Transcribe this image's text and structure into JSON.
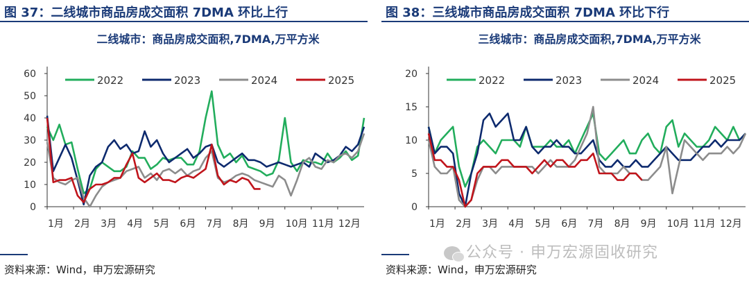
{
  "figures": [
    {
      "fig_title": "图 37：二线城市商品房成交面积 7DMA 环比上行",
      "source": "资料来源：Wind，申万宏源研究"
    },
    {
      "fig_title": "图 38：三线城市商品房成交面积 7DMA 环比下行",
      "source": "资料来源：Wind，申万宏源研究"
    }
  ],
  "watermark": "公众号 · 申万宏源固收研究",
  "chart_data": [
    {
      "type": "line",
      "title": "二线城市：商品房成交面积,7DMA,万平方米",
      "x_unit": "week",
      "x_range": [
        0,
        52
      ],
      "xticks": [
        "1月",
        "2月",
        "3月",
        "4月",
        "5月",
        "6月",
        "7月",
        "8月",
        "9月",
        "10月",
        "11月",
        "12月"
      ],
      "ylim": [
        0,
        60
      ],
      "yticks": [
        0,
        10,
        20,
        30,
        40,
        50,
        60
      ],
      "legend_position": "top",
      "grid": false,
      "series": [
        {
          "name": "2022",
          "color": "#22ad5c",
          "x": [
            0,
            1,
            2,
            3,
            4,
            5,
            6,
            7,
            8,
            9,
            10,
            11,
            12,
            13,
            14,
            15,
            16,
            17,
            18,
            19,
            20,
            21,
            22,
            23,
            24,
            25,
            26,
            27,
            28,
            29,
            30,
            31,
            32,
            33,
            34,
            35,
            36,
            37,
            38,
            39,
            40,
            41,
            42,
            43,
            44,
            45,
            46,
            47,
            48,
            49,
            50,
            51,
            52
          ],
          "values": [
            36,
            30,
            37,
            28,
            29,
            17,
            6,
            8,
            17,
            20,
            18,
            16,
            16,
            18,
            25,
            22,
            22,
            17,
            19,
            22,
            21,
            22,
            22,
            19,
            19,
            25,
            40,
            52,
            28,
            22,
            24,
            20,
            23,
            18,
            17,
            16,
            14,
            15,
            21,
            40,
            20,
            16,
            21,
            20,
            20,
            19,
            24,
            20,
            22,
            25,
            21,
            23,
            40
          ]
        },
        {
          "name": "2023",
          "color": "#0d2a6e",
          "x": [
            0,
            1,
            2,
            3,
            4,
            5,
            6,
            7,
            8,
            9,
            10,
            11,
            12,
            13,
            14,
            15,
            16,
            17,
            18,
            19,
            20,
            21,
            22,
            23,
            24,
            25,
            26,
            27,
            28,
            29,
            30,
            31,
            32,
            33,
            34,
            35,
            36,
            37,
            38,
            39,
            40,
            41,
            42,
            43,
            44,
            45,
            46,
            47,
            48,
            49,
            50,
            51,
            52
          ],
          "values": [
            41,
            16,
            22,
            28,
            22,
            12,
            1,
            14,
            18,
            20,
            27,
            30,
            26,
            28,
            24,
            25,
            34,
            27,
            30,
            24,
            20,
            22,
            24,
            26,
            22,
            24,
            27,
            28,
            20,
            18,
            20,
            22,
            24,
            21,
            21,
            20,
            18,
            19,
            20,
            19,
            18,
            19,
            20,
            18,
            24,
            22,
            20,
            21,
            23,
            27,
            25,
            28,
            36
          ]
        },
        {
          "name": "2024",
          "color": "#8c8c8c",
          "x": [
            0,
            1,
            2,
            3,
            4,
            5,
            6,
            7,
            8,
            9,
            10,
            11,
            12,
            13,
            14,
            15,
            16,
            17,
            18,
            19,
            20,
            21,
            22,
            23,
            24,
            25,
            26,
            27,
            28,
            29,
            30,
            31,
            32,
            33,
            34,
            35,
            36,
            37,
            38,
            39,
            40,
            41,
            42,
            43,
            44,
            45,
            46,
            47,
            48,
            49,
            50,
            51,
            52
          ],
          "values": [
            29,
            13,
            11,
            10,
            12,
            13,
            4,
            0,
            5,
            9,
            11,
            12,
            13,
            16,
            17,
            18,
            13,
            15,
            12,
            16,
            17,
            15,
            17,
            14,
            16,
            17,
            22,
            25,
            13,
            11,
            12,
            14,
            15,
            14,
            12,
            11,
            10,
            9,
            14,
            12,
            5,
            12,
            20,
            22,
            18,
            17,
            21,
            20,
            23,
            24,
            22,
            25,
            33
          ]
        },
        {
          "name": "2025",
          "color": "#c0141b",
          "x": [
            0,
            1,
            2,
            3,
            4,
            5,
            6,
            7,
            8,
            9,
            10,
            11,
            12,
            13,
            14,
            15,
            16,
            17,
            18,
            19,
            20,
            21,
            22,
            23,
            24,
            25,
            26,
            27,
            28,
            29,
            30,
            31,
            32,
            33,
            34,
            35
          ],
          "values": [
            40,
            11,
            12,
            12,
            13,
            5,
            2,
            8,
            10,
            10,
            11,
            13,
            13,
            19,
            24,
            13,
            11,
            13,
            15,
            12,
            12,
            11,
            13,
            14,
            13,
            15,
            17,
            28,
            14,
            10,
            12,
            11,
            13,
            12,
            8,
            8
          ]
        }
      ]
    },
    {
      "type": "line",
      "title": "三线城市：商品房成交面积,7DMA,万平方米",
      "x_unit": "week",
      "x_range": [
        0,
        52
      ],
      "xticks": [
        "1月",
        "2月",
        "3月",
        "4月",
        "5月",
        "6月",
        "7月",
        "8月",
        "9月",
        "10月",
        "11月",
        "12月"
      ],
      "ylim": [
        0,
        20
      ],
      "yticks": [
        0,
        5,
        10,
        15,
        20
      ],
      "legend_position": "top",
      "grid": false,
      "series": [
        {
          "name": "2022",
          "color": "#22ad5c",
          "x": [
            0,
            1,
            2,
            3,
            4,
            5,
            6,
            7,
            8,
            9,
            10,
            11,
            12,
            13,
            14,
            15,
            16,
            17,
            18,
            19,
            20,
            21,
            22,
            23,
            24,
            25,
            26,
            27,
            28,
            29,
            30,
            31,
            32,
            33,
            34,
            35,
            36,
            37,
            38,
            39,
            40,
            41,
            42,
            43,
            44,
            45,
            46,
            47,
            48,
            49,
            50,
            51,
            52
          ],
          "values": [
            12,
            8,
            10,
            11,
            12,
            6,
            3,
            5,
            9,
            10,
            9,
            8,
            10,
            10,
            10,
            9,
            12,
            9,
            9,
            9,
            10,
            9,
            9,
            10,
            8,
            10,
            12,
            14,
            8,
            7,
            8,
            9,
            10,
            8,
            8,
            10,
            11,
            9,
            8,
            12,
            13,
            9,
            11,
            10,
            9,
            9,
            10,
            12,
            11,
            10,
            12,
            10,
            11
          ]
        },
        {
          "name": "2023",
          "color": "#0d2a6e",
          "x": [
            0,
            1,
            2,
            3,
            4,
            5,
            6,
            7,
            8,
            9,
            10,
            11,
            12,
            13,
            14,
            15,
            16,
            17,
            18,
            19,
            20,
            21,
            22,
            23,
            24,
            25,
            26,
            27,
            28,
            29,
            30,
            31,
            32,
            33,
            34,
            35,
            36,
            37,
            38,
            39,
            40,
            41,
            42,
            43,
            44,
            45,
            46,
            47,
            48,
            49,
            50,
            51,
            52
          ],
          "values": [
            12,
            8,
            9,
            9,
            8,
            2,
            0,
            5,
            8,
            13,
            14,
            12,
            13,
            14,
            10,
            10,
            12,
            9,
            8,
            9,
            9,
            10,
            9,
            9,
            8,
            8,
            9,
            10,
            7,
            6,
            6,
            7,
            6,
            6,
            7,
            6,
            6,
            7,
            8,
            9,
            8,
            7,
            7,
            7,
            8,
            9,
            9,
            10,
            9,
            10,
            10,
            10,
            11
          ]
        },
        {
          "name": "2024",
          "color": "#8c8c8c",
          "x": [
            0,
            1,
            2,
            3,
            4,
            5,
            6,
            7,
            8,
            9,
            10,
            11,
            12,
            13,
            14,
            15,
            16,
            17,
            18,
            19,
            20,
            21,
            22,
            23,
            24,
            25,
            26,
            27,
            28,
            29,
            30,
            31,
            32,
            33,
            34,
            35,
            36,
            37,
            38,
            39,
            40,
            41,
            42,
            43,
            44,
            45,
            46,
            47,
            48,
            49,
            50,
            51,
            52
          ],
          "values": [
            10,
            6,
            5,
            5,
            6,
            1,
            0,
            1,
            4,
            6,
            6,
            5,
            6,
            6,
            6,
            6,
            6,
            6,
            5,
            6,
            7,
            6,
            6,
            6,
            7,
            9,
            11,
            15,
            6,
            5,
            5,
            5,
            6,
            5,
            5,
            4,
            4,
            5,
            6,
            9,
            2,
            6,
            10,
            9,
            8,
            7,
            8,
            8,
            8,
            9,
            8,
            9,
            11
          ]
        },
        {
          "name": "2025",
          "color": "#c0141b",
          "x": [
            0,
            1,
            2,
            3,
            4,
            5,
            6,
            7,
            8,
            9,
            10,
            11,
            12,
            13,
            14,
            15,
            16,
            17,
            18,
            19,
            20,
            21,
            22,
            23,
            24,
            25,
            26,
            27,
            28,
            29,
            30,
            31,
            32,
            33,
            34,
            35
          ],
          "values": [
            11,
            7,
            7,
            6,
            6,
            4,
            0,
            1,
            5,
            6,
            6,
            6,
            7,
            7,
            6,
            6,
            6,
            5,
            6,
            7,
            6,
            7,
            7,
            6,
            6,
            7,
            7,
            8,
            5,
            5,
            5,
            4,
            4,
            5,
            5,
            4
          ]
        }
      ]
    }
  ]
}
